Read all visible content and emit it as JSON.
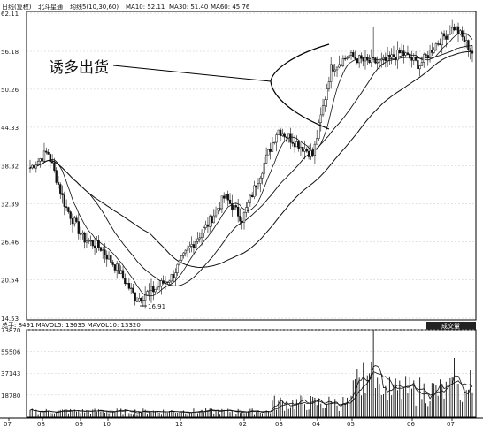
{
  "price_header": {
    "period": "日线(复权)",
    "stock_name": "北斗星通",
    "ma_label": "均线5(10,30,60)",
    "ma10": "MA10: 52.11",
    "ma30": "MA30: 51.40",
    "ma60": "MA60: 45.76"
  },
  "volume_header": {
    "text": "总手: 8491 MAVOL5: 13635 MAVOL10: 13320",
    "button_label": "成交量"
  },
  "annotation": {
    "text": "诱多出货"
  },
  "low_label": "16.91",
  "price_y_ticks": [
    "62.11",
    "56.18",
    "50.26",
    "44.33",
    "38.32",
    "32.39",
    "26.46",
    "20.54",
    "14.53"
  ],
  "volume_y_ticks": [
    "73870",
    "55506",
    "37143",
    "18780"
  ],
  "x_ticks": [
    "07",
    "08",
    "09",
    "10",
    "12",
    "02",
    "03",
    "04",
    "05",
    "06",
    "07"
  ],
  "chart_data": [
    {
      "type": "candlestick",
      "ylim": [
        14.53,
        62.11
      ],
      "months": [
        "07",
        "08",
        "09",
        "10",
        "12",
        "02",
        "03",
        "04",
        "05",
        "06",
        "07"
      ],
      "close_anchors": [
        38.0,
        40.5,
        32.0,
        27.0,
        25.5,
        22.0,
        17.5,
        19.0,
        21.0,
        25.5,
        29.0,
        33.5,
        30.0,
        37.0,
        44.0,
        42.0,
        40.0,
        53.5,
        55.5,
        54.5,
        54.5,
        56.0,
        54.0,
        57.5,
        60.0,
        56.0
      ],
      "spike_high": 60.0,
      "low": 16.91,
      "moving_averages": [
        "MA10",
        "MA30",
        "MA60"
      ],
      "color": "#111111"
    },
    {
      "type": "bar",
      "title": "成交量",
      "ylim": [
        0,
        73870
      ],
      "spike_max": 73870,
      "moving_averages": [
        "MAVOL5",
        "MAVOL10"
      ],
      "color": "#111111"
    }
  ]
}
